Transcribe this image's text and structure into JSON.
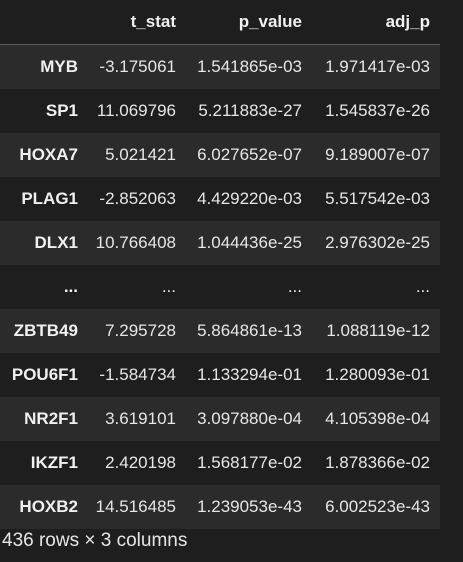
{
  "table": {
    "index_header": "",
    "columns": [
      "t_stat",
      "p_value",
      "adj_p"
    ],
    "rows": [
      {
        "index": "MYB",
        "values": [
          "-3.175061",
          "1.541865e-03",
          "1.971417e-03"
        ]
      },
      {
        "index": "SP1",
        "values": [
          "11.069796",
          "5.211883e-27",
          "1.545837e-26"
        ]
      },
      {
        "index": "HOXA7",
        "values": [
          "5.021421",
          "6.027652e-07",
          "9.189007e-07"
        ]
      },
      {
        "index": "PLAG1",
        "values": [
          "-2.852063",
          "4.429220e-03",
          "5.517542e-03"
        ]
      },
      {
        "index": "DLX1",
        "values": [
          "10.766408",
          "1.044436e-25",
          "2.976302e-25"
        ]
      },
      {
        "index": "...",
        "values": [
          "...",
          "...",
          "..."
        ]
      },
      {
        "index": "ZBTB49",
        "values": [
          "7.295728",
          "5.864861e-13",
          "1.088119e-12"
        ]
      },
      {
        "index": "POU6F1",
        "values": [
          "-1.584734",
          "1.133294e-01",
          "1.280093e-01"
        ]
      },
      {
        "index": "NR2F1",
        "values": [
          "3.619101",
          "3.097880e-04",
          "4.105398e-04"
        ]
      },
      {
        "index": "IKZF1",
        "values": [
          "2.420198",
          "1.568177e-02",
          "1.878366e-02"
        ]
      },
      {
        "index": "HOXB2",
        "values": [
          "14.516485",
          "1.239053e-43",
          "6.002523e-43"
        ]
      }
    ]
  },
  "shape_text": "436 rows × 3 columns"
}
